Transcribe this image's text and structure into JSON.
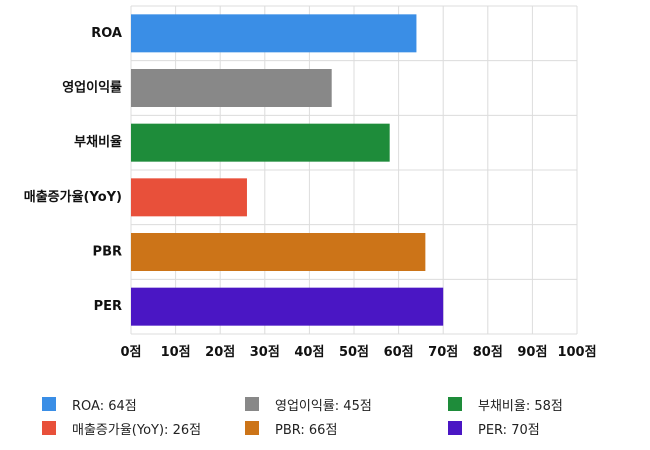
{
  "chart_data": {
    "type": "bar",
    "orientation": "horizontal",
    "categories": [
      "ROA",
      "영업이익률",
      "부채비율",
      "매출증가율(YoY)",
      "PBR",
      "PER"
    ],
    "values": [
      64,
      45,
      58,
      26,
      66,
      70
    ],
    "colors": [
      "#3a8ee6",
      "#888888",
      "#1e8c3a",
      "#e8503a",
      "#cc7418",
      "#4a16c4"
    ],
    "xlim": [
      0,
      100
    ],
    "x_ticks": [
      {
        "value": 0,
        "label": "0점"
      },
      {
        "value": 10,
        "label": "10점"
      },
      {
        "value": 20,
        "label": "20점"
      },
      {
        "value": 30,
        "label": "30점"
      },
      {
        "value": 40,
        "label": "40점"
      },
      {
        "value": 50,
        "label": "50점"
      },
      {
        "value": 60,
        "label": "60점"
      },
      {
        "value": 70,
        "label": "70점"
      },
      {
        "value": 80,
        "label": "80점"
      },
      {
        "value": 90,
        "label": "90점"
      },
      {
        "value": 100,
        "label": "100점"
      }
    ],
    "grid": true,
    "legend_position": "bottom",
    "legend": [
      {
        "label": "ROA: 64점",
        "color": "#3a8ee6"
      },
      {
        "label": "영업이익률: 45점",
        "color": "#888888"
      },
      {
        "label": "부채비율: 58점",
        "color": "#1e8c3a"
      },
      {
        "label": "매출증가율(YoY): 26점",
        "color": "#e8503a"
      },
      {
        "label": "PBR: 66점",
        "color": "#cc7418"
      },
      {
        "label": "PER: 70점",
        "color": "#4a16c4"
      }
    ]
  }
}
